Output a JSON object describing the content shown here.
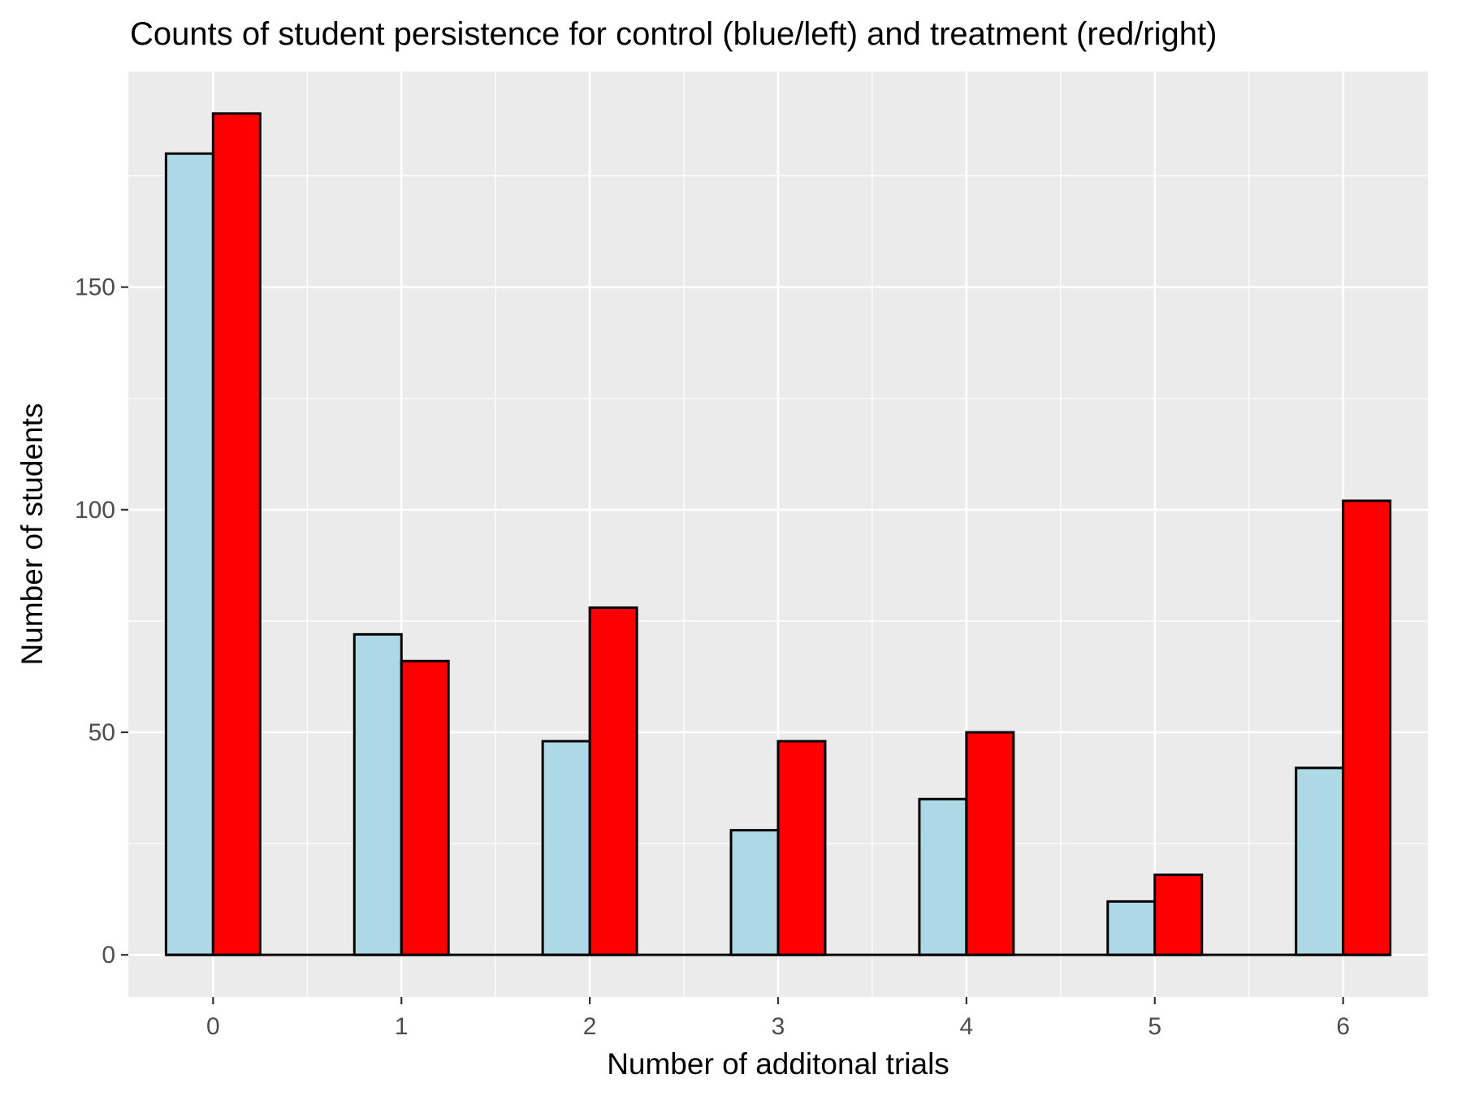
{
  "chart_data": {
    "type": "bar",
    "title": "Counts of student persistence for control (blue/left) and treatment (red/right)",
    "xlabel": "Number of additonal trials",
    "ylabel": "Number of students",
    "categories": [
      "0",
      "1",
      "2",
      "3",
      "4",
      "5",
      "6"
    ],
    "x": [
      0,
      1,
      2,
      3,
      4,
      5,
      6
    ],
    "series": [
      {
        "values": [
          180,
          72,
          48,
          28,
          35,
          12,
          42
        ],
        "color": "#add8e6"
      },
      {
        "values": [
          189,
          66,
          78,
          48,
          50,
          18,
          102
        ],
        "color": "#ff0000"
      }
    ],
    "ylim": [
      -9.45,
      198.45
    ],
    "xlim": [
      -0.45,
      6.45
    ],
    "yticks": [
      0,
      50,
      100,
      150
    ],
    "yticklabels": [
      "0",
      "50",
      "100",
      "150"
    ],
    "xticklabels": [
      "0",
      "1",
      "2",
      "3",
      "4",
      "5",
      "6"
    ],
    "grid": true,
    "legend": "none",
    "colors": {
      "panel_background": "#ebebeb",
      "grid": "#ffffff",
      "bar_outline": "#000000",
      "tick_text": "#4d4d4d"
    }
  }
}
